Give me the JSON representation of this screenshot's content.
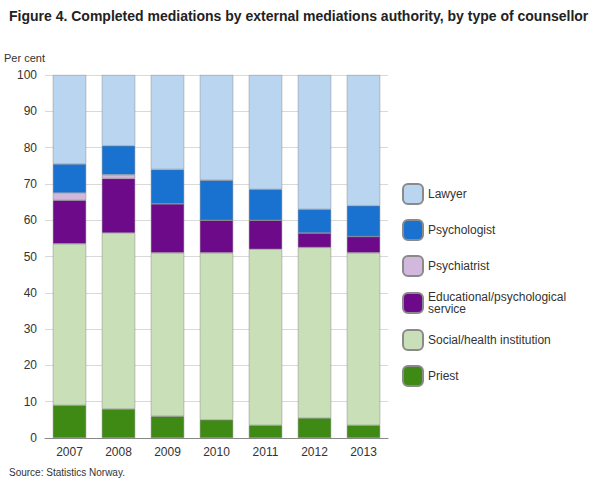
{
  "chart_data": {
    "type": "bar",
    "title": "Figure 4. Completed mediations by external mediations authority, by type of counsellor",
    "y_label": "Per cent",
    "source": "Source: Statistics Norway.",
    "categories": [
      "2007",
      "2008",
      "2009",
      "2010",
      "2011",
      "2012",
      "2013"
    ],
    "stacked": true,
    "grid": true,
    "legend": "right",
    "ylim": [
      0,
      100
    ],
    "yticks": [
      0,
      10,
      20,
      30,
      40,
      50,
      60,
      70,
      80,
      90,
      100
    ],
    "series": [
      {
        "name": "Priest",
        "color": "#3e8a14",
        "values": [
          9,
          8,
          6,
          5,
          3.5,
          5.5,
          3.5
        ]
      },
      {
        "name": "Social/health institution",
        "color": "#c8dfb8",
        "values": [
          44.5,
          48.5,
          45,
          46,
          48.5,
          47,
          47.5
        ]
      },
      {
        "name": "Educational/psychological service",
        "color": "#6d0a8a",
        "values": [
          12,
          15,
          13.5,
          9,
          8,
          4,
          4.5
        ]
      },
      {
        "name": "Psychiatrist",
        "color": "#d3b8de",
        "values": [
          2,
          1,
          0,
          0,
          0,
          0,
          0
        ]
      },
      {
        "name": "Psychologist",
        "color": "#1a72d0",
        "values": [
          8,
          8,
          9.5,
          11,
          8.5,
          6.5,
          8.5
        ]
      },
      {
        "name": "Lawyer",
        "color": "#b9d5f0",
        "values": [
          24.5,
          19.5,
          26,
          29,
          31.5,
          37,
          36
        ]
      }
    ]
  }
}
